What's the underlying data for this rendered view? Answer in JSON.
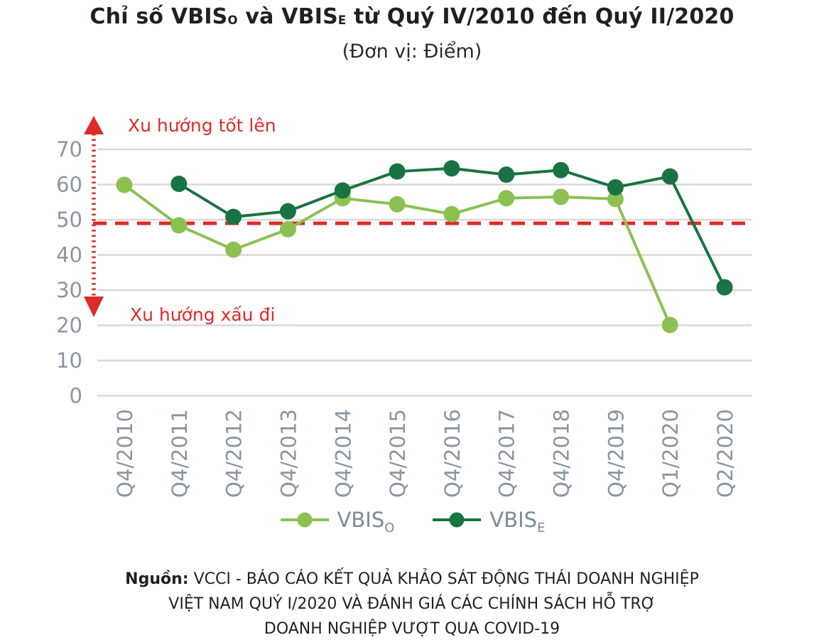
{
  "title": {
    "pre": "Chỉ số VBIS",
    "sub1": "O",
    "mid": " và VBIS",
    "sub2": "E",
    "post": " từ Quý IV/2010 đến Quý II/2020"
  },
  "subtitle": "(Đơn vị: Điểm)",
  "annotations": {
    "trend_up": "Xu hướng tốt lên",
    "trend_down": "Xu hướng xấu đi"
  },
  "legend": [
    {
      "name": "VBIS",
      "sub": "O",
      "color": "#8cc152"
    },
    {
      "name": "VBIS",
      "sub": "E",
      "color": "#1a7342"
    }
  ],
  "source": {
    "label": "Nguồn:",
    "lines": [
      "VCCI - BÁO CÁO KẾT QUẢ KHẢO SÁT ĐỘNG THÁI DOANH NGHIỆP",
      "VIỆT NAM QUÝ I/2020 VÀ ĐÁNH GIÁ CÁC CHÍNH SÁCH HỖ TRỢ",
      "DOANH NGHIỆP VƯỢT QUA COVID-19"
    ]
  },
  "colors": {
    "light_green": "#8cc152",
    "dark_green": "#1a7342",
    "red": "#dd2b27",
    "grid": "#d8d8d8",
    "axis_text": "#8b959e",
    "title_text": "#231f20"
  },
  "chart_data": {
    "type": "line",
    "title": "Chỉ số VBIS O và VBIS E từ Quý IV/2010 đến Quý II/2020",
    "unit": "Điểm",
    "categories": [
      "Q4/2010",
      "Q4/2011",
      "Q4/2012",
      "Q4/2013",
      "Q4/2014",
      "Q4/2015",
      "Q4/2016",
      "Q4/2017",
      "Q4/2018",
      "Q4/2019",
      "Q1/2020",
      "Q2/2020"
    ],
    "series": [
      {
        "name": "VBIS_O",
        "color": "#8cc152",
        "values": [
          59.9,
          48.4,
          41.5,
          47.3,
          56.1,
          54.4,
          51.6,
          56.1,
          56.5,
          55.9,
          20.1,
          null
        ]
      },
      {
        "name": "VBIS_E",
        "color": "#1a7342",
        "values": [
          null,
          60.2,
          50.8,
          52.4,
          58.3,
          63.7,
          64.6,
          62.8,
          64.1,
          59.2,
          62.3,
          30.8
        ]
      }
    ],
    "yticks": [
      0,
      10,
      20,
      30,
      40,
      50,
      60,
      70
    ],
    "ylim": [
      0,
      75
    ],
    "grid": "horizontal",
    "legend_position": "bottom",
    "reference_line": {
      "value": 49,
      "color": "#dd2b27",
      "style": "dashed"
    },
    "annotations": [
      {
        "text": "Xu hướng tốt lên",
        "direction": "up"
      },
      {
        "text": "Xu hướng xấu đi",
        "direction": "down"
      }
    ]
  }
}
